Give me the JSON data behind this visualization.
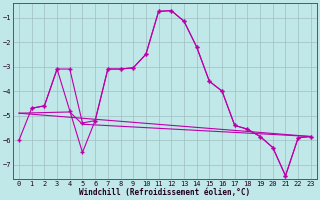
{
  "xlabel": "Windchill (Refroidissement éolien,°C)",
  "bg_color": "#c0e8e8",
  "grid_color": "#9fbfbf",
  "line_color": "#bb00aa",
  "x_ticks": [
    0,
    1,
    2,
    3,
    4,
    5,
    6,
    7,
    8,
    9,
    10,
    11,
    12,
    13,
    14,
    15,
    16,
    17,
    18,
    19,
    20,
    21,
    22,
    23
  ],
  "y_ticks": [
    -7,
    -6,
    -5,
    -4,
    -3,
    -2,
    -1
  ],
  "ylim": [
    -7.6,
    -0.4
  ],
  "xlim": [
    -0.5,
    23.5
  ],
  "series1_x": [
    0,
    1,
    2,
    3,
    4,
    5,
    6,
    7,
    8,
    9,
    10,
    11,
    12,
    13,
    14,
    15,
    16,
    17,
    18,
    19,
    20,
    21,
    22,
    23
  ],
  "series1_y": [
    -6.0,
    -4.7,
    -4.6,
    -3.1,
    -3.1,
    -5.3,
    -5.2,
    -3.1,
    -3.1,
    -3.05,
    -2.5,
    -0.75,
    -0.72,
    -1.15,
    -2.2,
    -3.6,
    -4.0,
    -5.4,
    -5.55,
    -5.85,
    -6.3,
    -7.45,
    -5.9,
    -5.85
  ],
  "series2_x": [
    1,
    2,
    3,
    4,
    5,
    6,
    7,
    8,
    9,
    10,
    11,
    12,
    13,
    14,
    15,
    16,
    17,
    18,
    19,
    20,
    21,
    22,
    23
  ],
  "series2_y": [
    -4.7,
    -4.6,
    -3.1,
    -4.8,
    -6.5,
    -5.2,
    -3.1,
    -3.1,
    -3.05,
    -2.5,
    -0.75,
    -0.72,
    -1.15,
    -2.2,
    -3.6,
    -4.0,
    -5.4,
    -5.55,
    -5.85,
    -6.3,
    -7.45,
    -5.9,
    -5.85
  ],
  "series3_x": [
    0,
    23
  ],
  "series3_y": [
    -4.9,
    -5.85
  ],
  "series4_x": [
    0,
    4,
    5,
    23
  ],
  "series4_y": [
    -4.9,
    -4.85,
    -5.35,
    -5.85
  ]
}
